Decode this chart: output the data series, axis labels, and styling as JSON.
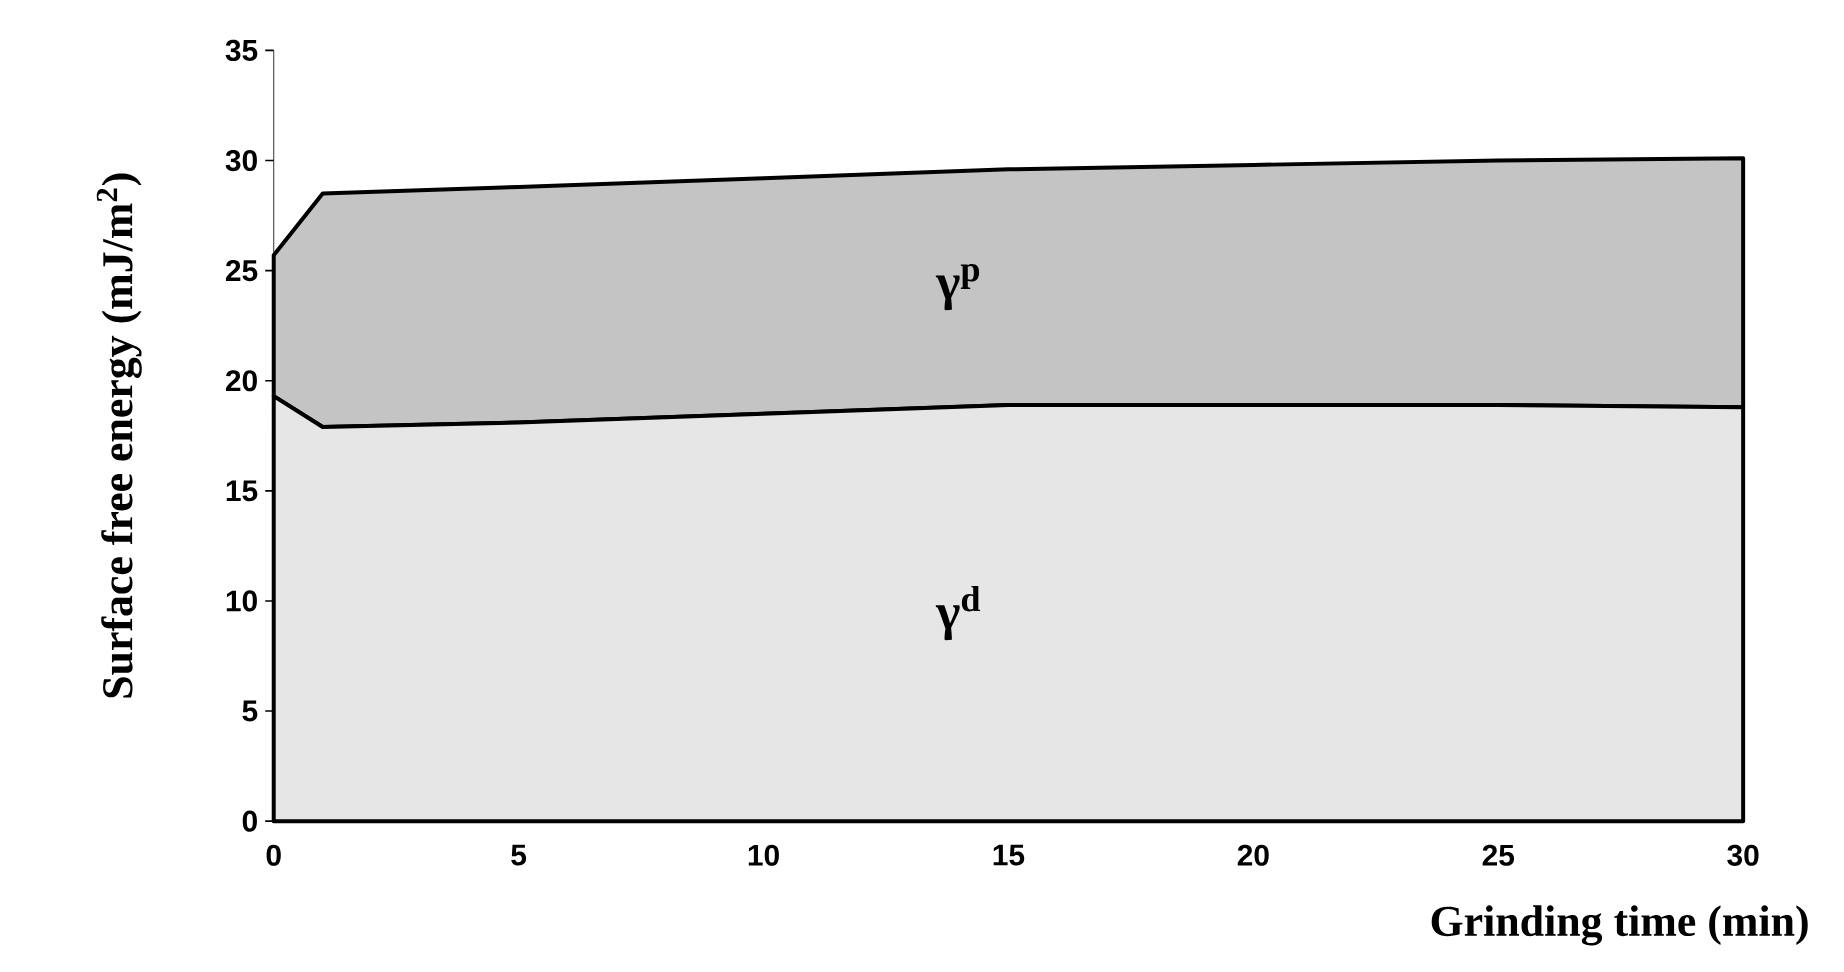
{
  "chart_data": {
    "type": "area",
    "stacked": true,
    "xlabel": "Grinding time  (min)",
    "ylabel": "Surface free energy  (mJ/m$^{2}$)",
    "x": [
      0,
      1,
      5,
      10,
      15,
      20,
      25,
      30
    ],
    "series": [
      {
        "name": "γ$^{d}$",
        "color": "#e6e6e6",
        "values": [
          19.3,
          17.9,
          18.1,
          18.5,
          18.9,
          18.9,
          18.9,
          18.8
        ]
      },
      {
        "name": "γ$^{p}$",
        "color": "#c4c4c4",
        "values": [
          6.4,
          10.6,
          10.7,
          10.7,
          10.7,
          10.9,
          11.1,
          11.3
        ]
      }
    ],
    "xlim": [
      0,
      30
    ],
    "ylim": [
      0,
      35
    ],
    "xticks": [
      0,
      5,
      10,
      15,
      20,
      25,
      30
    ],
    "yticks": [
      0,
      5,
      10,
      15,
      20,
      25,
      30,
      35
    ],
    "grid": false
  }
}
